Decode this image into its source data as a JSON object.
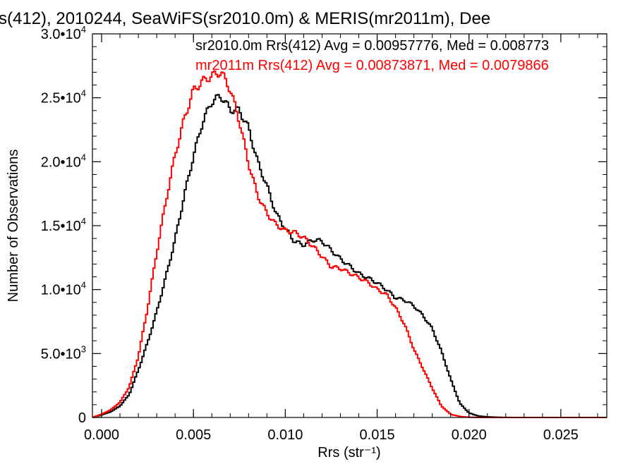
{
  "chart_data": {
    "type": "line",
    "title": "s(412), 2010244, SeaWiFS(sr2010.0m) & MERIS(mr2011m), Dee",
    "xlabel": "Rrs (str⁻¹)",
    "ylabel": "Number of Observations",
    "xlim": [
      -0.0005,
      0.0275
    ],
    "ylim": [
      0,
      30000
    ],
    "x_ticks": [
      {
        "value": 0.0,
        "label": "0.000"
      },
      {
        "value": 0.005,
        "label": "0.005"
      },
      {
        "value": 0.01,
        "label": "0.010"
      },
      {
        "value": 0.015,
        "label": "0.015"
      },
      {
        "value": 0.02,
        "label": "0.020"
      },
      {
        "value": 0.025,
        "label": "0.025"
      }
    ],
    "y_ticks": [
      {
        "value": 0,
        "mant": "0",
        "exp": ""
      },
      {
        "value": 5000,
        "mant": "5.0•10",
        "exp": "3"
      },
      {
        "value": 10000,
        "mant": "1.0•10",
        "exp": "4"
      },
      {
        "value": 15000,
        "mant": "1.5•10",
        "exp": "4"
      },
      {
        "value": 20000,
        "mant": "2.0•10",
        "exp": "4"
      },
      {
        "value": 25000,
        "mant": "2.5•10",
        "exp": "4"
      },
      {
        "value": 30000,
        "mant": "3.0•10",
        "exp": "4"
      }
    ],
    "series": [
      {
        "name": "sr2010.0m Rrs(412) Avg = 0.00957776, Med = 0.008773",
        "color": "#000000",
        "x": [
          -0.0005,
          0.0,
          0.0005,
          0.001,
          0.0015,
          0.002,
          0.0025,
          0.003,
          0.0035,
          0.004,
          0.0045,
          0.005,
          0.0055,
          0.006,
          0.0065,
          0.007,
          0.0075,
          0.008,
          0.0085,
          0.009,
          0.0095,
          0.01,
          0.0105,
          0.011,
          0.0115,
          0.012,
          0.0125,
          0.013,
          0.0135,
          0.014,
          0.0145,
          0.015,
          0.0155,
          0.016,
          0.0165,
          0.017,
          0.0175,
          0.018,
          0.0185,
          0.019,
          0.0195,
          0.02,
          0.0205,
          0.021,
          0.0215,
          0.022,
          0.023,
          0.0275
        ],
        "y": [
          0,
          200,
          450,
          900,
          1800,
          3700,
          5800,
          8200,
          11000,
          14000,
          17500,
          20500,
          23000,
          24500,
          25000,
          24100,
          24200,
          22800,
          20000,
          18000,
          15800,
          14700,
          13800,
          13600,
          14000,
          13800,
          13000,
          12300,
          11800,
          11300,
          11000,
          10600,
          10000,
          9300,
          9100,
          8700,
          8000,
          7000,
          5200,
          3000,
          1100,
          350,
          120,
          50,
          20,
          5,
          0,
          0
        ]
      },
      {
        "name": "mr2011m Rrs(412) Avg = 0.00873871, Med = 0.0079866",
        "color": "#ff0000",
        "x": [
          -0.0005,
          0.0,
          0.0005,
          0.001,
          0.0015,
          0.002,
          0.0025,
          0.003,
          0.0035,
          0.004,
          0.0045,
          0.005,
          0.0055,
          0.006,
          0.0065,
          0.007,
          0.0075,
          0.008,
          0.0085,
          0.009,
          0.0095,
          0.01,
          0.0105,
          0.011,
          0.0115,
          0.012,
          0.0125,
          0.013,
          0.0135,
          0.014,
          0.0145,
          0.015,
          0.0155,
          0.016,
          0.0165,
          0.017,
          0.0175,
          0.018,
          0.0185,
          0.019,
          0.0195,
          0.02,
          0.0205,
          0.021,
          0.0215,
          0.022,
          0.023,
          0.0275
        ],
        "y": [
          0,
          250,
          600,
          1200,
          2400,
          4800,
          8500,
          12800,
          16800,
          20500,
          23500,
          25800,
          26400,
          26600,
          26800,
          25500,
          23200,
          20000,
          17500,
          16000,
          15000,
          14500,
          14400,
          14100,
          13500,
          12700,
          11800,
          11600,
          11200,
          10900,
          10600,
          10100,
          9700,
          8600,
          7200,
          5300,
          3800,
          2300,
          900,
          250,
          80,
          20,
          5,
          0,
          0,
          0,
          0,
          0
        ]
      }
    ],
    "grid": false,
    "legend_placement": "top-right"
  }
}
